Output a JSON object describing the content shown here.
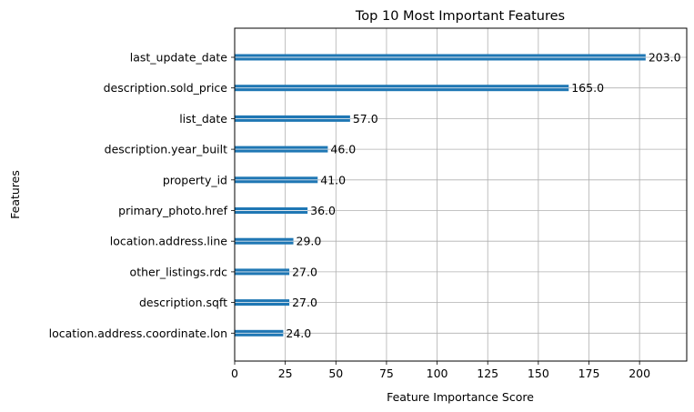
{
  "chart_data": {
    "type": "bar",
    "orientation": "horizontal",
    "title": "Top 10 Most Important Features",
    "xlabel": "Feature Importance Score",
    "ylabel": "Features",
    "categories": [
      "last_update_date",
      "description.sold_price",
      "list_date",
      "description.year_built",
      "property_id",
      "primary_photo.href",
      "location.address.line",
      "other_listings.rdc",
      "description.sqft",
      "location.address.coordinate.lon"
    ],
    "values": [
      203.0,
      165.0,
      57.0,
      46.0,
      41.0,
      36.0,
      29.0,
      27.0,
      27.0,
      24.0
    ],
    "data_labels": [
      "203.0",
      "165.0",
      "57.0",
      "46.0",
      "41.0",
      "36.0",
      "29.0",
      "27.0",
      "27.0",
      "24.0"
    ],
    "xticks": [
      0,
      25,
      50,
      75,
      100,
      125,
      150,
      175,
      200
    ],
    "xlim": [
      0,
      223.3
    ],
    "grid": true,
    "bar_color": "#1f77b4"
  }
}
